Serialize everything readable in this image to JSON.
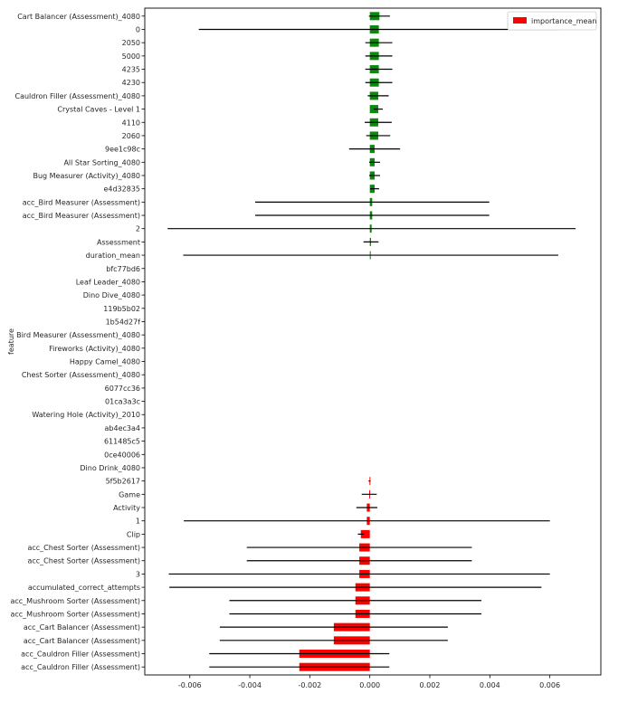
{
  "chart_data": {
    "type": "bar",
    "orientation": "horizontal",
    "ylabel": "feature",
    "xlabel": "",
    "xlim": [
      -0.0075,
      0.0077
    ],
    "xticks": [
      -0.006,
      -0.004,
      -0.002,
      0.0,
      0.002,
      0.004,
      0.006
    ],
    "xtick_labels": [
      "-0.006",
      "-0.004",
      "-0.002",
      "0.000",
      "0.002",
      "0.004",
      "0.006"
    ],
    "legend": {
      "position": "top-right",
      "entries": [
        {
          "label": "importance_mean",
          "color": "#ff0000"
        }
      ]
    },
    "colors": {
      "positive": "#0a8a0a",
      "negative": "#ff0000",
      "error": "#000000"
    },
    "categories": [
      "Cart Balancer (Assessment)_4080",
      "0",
      "2050",
      "5000",
      "4235",
      "4230",
      "Cauldron Filler (Assessment)_4080",
      "Crystal Caves - Level 1",
      "4110",
      "2060",
      "9ee1c98c",
      "All Star Sorting_4080",
      "Bug Measurer (Activity)_4080",
      "e4d32835",
      "acc_Bird Measurer (Assessment)",
      "acc_Bird Measurer (Assessment)",
      "2",
      "Assessment",
      "duration_mean",
      "bfc77bd6",
      "Leaf Leader_4080",
      "Dino Dive_4080",
      "119b5b02",
      "1b54d27f",
      "Bird Measurer (Assessment)_4080",
      "Fireworks (Activity)_4080",
      "Happy Camel_4080",
      "Chest Sorter (Assessment)_4080",
      "6077cc36",
      "01ca3a3c",
      "Watering Hole (Activity)_2010",
      "ab4ec3a4",
      "611485c5",
      "0ce40006",
      "Dino Drink_4080",
      "5f5b2617",
      "Game",
      "Activity",
      "1",
      "Clip",
      "acc_Chest Sorter (Assessment)",
      "acc_Chest Sorter (Assessment)",
      "3",
      "accumulated_correct_attempts",
      "acc_Mushroom Sorter (Assessment)",
      "acc_Mushroom Sorter (Assessment)",
      "acc_Cart Balancer (Assessment)",
      "acc_Cart Balancer (Assessment)",
      "acc_Cauldron Filler (Assessment)",
      "acc_Cauldron Filler (Assessment)"
    ],
    "values": [
      0.00032,
      0.0003,
      0.0003,
      0.0003,
      0.0003,
      0.0003,
      0.00028,
      0.00028,
      0.00028,
      0.00028,
      0.00016,
      0.00016,
      0.00016,
      0.00016,
      8e-05,
      8e-05,
      6e-05,
      4e-05,
      3e-05,
      0,
      0,
      0,
      0,
      0,
      0,
      0,
      0,
      0,
      0,
      0,
      0,
      0,
      0,
      0,
      0,
      -1e-05,
      -2e-05,
      -0.0001,
      -0.0001,
      -0.0003,
      -0.00035,
      -0.00035,
      -0.00035,
      -0.00048,
      -0.00048,
      -0.00048,
      -0.0012,
      -0.0012,
      -0.00235,
      -0.00235
    ],
    "errors": [
      0.00035,
      0.006,
      0.00045,
      0.00045,
      0.00045,
      0.00045,
      0.00035,
      0.00015,
      0.00045,
      0.0004,
      0.00085,
      0.00018,
      0.00018,
      0.00015,
      0.0039,
      0.0039,
      0.0068,
      0.00025,
      0.00625,
      0,
      0,
      0,
      0,
      0,
      0,
      0,
      0,
      0,
      0,
      0,
      0,
      0,
      0,
      0,
      0,
      3e-05,
      0.00025,
      0.00035,
      0.0061,
      0.0001,
      0.00375,
      0.00375,
      0.00635,
      0.0062,
      0.0042,
      0.0042,
      0.0038,
      0.0038,
      0.003,
      0.003
    ]
  }
}
